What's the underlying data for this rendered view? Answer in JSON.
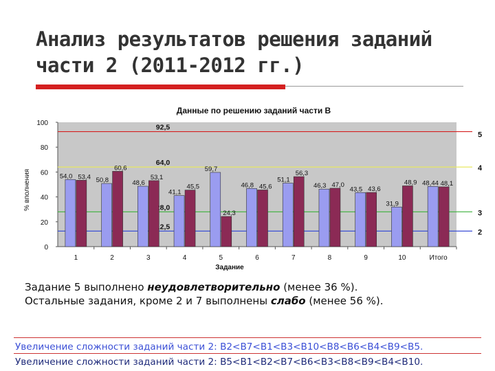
{
  "slide": {
    "title": "Анализ результатов решения заданий части 2 (2011-2012 гг.)",
    "note_line1_prefix": "Задание 5 выполнено ",
    "note_line1_emph": "неудовлетворительно",
    "note_line1_suffix": " (менее 36 %).",
    "note_line2_prefix": "Остальные задания, кроме 2 и 7 выполнены ",
    "note_line2_emph": "слабо",
    "note_line2_suffix": " (менее 56 %).",
    "seq1": "Увеличение сложности заданий части 2: В2<В7<В1<В3<В10<В8<В6<В4<В9<В5.",
    "seq2": "Увеличение сложности заданий части 2: В5<В1<В2<В7<В6<В3<В8<В9<В4<В10."
  },
  "chart_data": {
    "type": "bar",
    "title": "Данные по решению заданий части В",
    "xlabel": "Задание",
    "ylabel": "% вполнения",
    "ylim": [
      0,
      100
    ],
    "yticks": [
      0,
      20,
      40,
      60,
      80,
      100
    ],
    "categories": [
      "1",
      "2",
      "3",
      "4",
      "5",
      "6",
      "7",
      "8",
      "9",
      "10",
      "Итого"
    ],
    "series": [
      {
        "color": "#9a9cf0",
        "values": [
          54.0,
          50.8,
          48.6,
          41.1,
          59.7,
          46.8,
          51.1,
          46.3,
          43.5,
          31.9,
          48.44
        ]
      },
      {
        "color": "#8b2a55",
        "values": [
          53.4,
          60.6,
          53.1,
          45.5,
          24.3,
          45.6,
          56.3,
          47.0,
          43.6,
          48.9,
          48.1
        ]
      }
    ],
    "bar_labels": [
      [
        "54,0",
        "53,4"
      ],
      [
        "50,8",
        "60,6"
      ],
      [
        "48,6",
        "53,1"
      ],
      [
        "41,1",
        "45,5"
      ],
      [
        "59,7",
        "24,3"
      ],
      [
        "46,8",
        "45,6"
      ],
      [
        "51,1",
        "56,3"
      ],
      [
        "46,3",
        "47,0"
      ],
      [
        "43,5",
        "43,6"
      ],
      [
        "31,9",
        "48,9"
      ],
      [
        "48,44",
        "48,1"
      ]
    ],
    "reference_lines": [
      {
        "value": 92.5,
        "label": "92,5",
        "grade": "5",
        "color": "#d42020"
      },
      {
        "value": 64.0,
        "label": "64,0",
        "grade": "4",
        "color": "#e8e860"
      },
      {
        "value": 28.0,
        "label": "28,0",
        "grade": "3",
        "color": "#3ab03a"
      },
      {
        "value": 12.5,
        "label": "12,5",
        "grade": "2",
        "color": "#3b4fd6"
      }
    ],
    "plot_background": "#c8c8c8"
  }
}
